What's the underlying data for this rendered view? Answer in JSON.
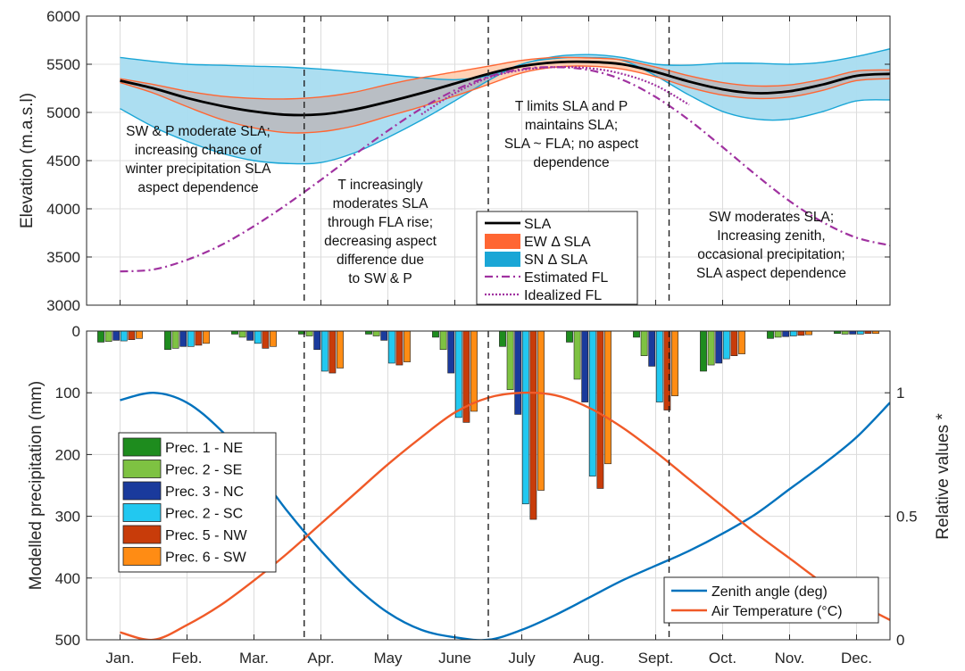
{
  "chart_data": [
    {
      "type": "line",
      "panel": "top",
      "ylabel": "Elevation (m.a.s.l)",
      "ylim": [
        3000,
        6000
      ],
      "yticks": [
        3000,
        3500,
        4000,
        4500,
        5000,
        5500,
        6000
      ],
      "x": [
        0,
        0.5,
        1,
        1.5,
        2,
        2.5,
        3,
        3.5,
        4,
        4.5,
        5,
        5.5,
        6,
        6.5,
        7,
        7.5,
        8,
        8.5,
        9,
        9.5,
        10,
        10.5,
        11,
        11.5
      ],
      "series": [
        {
          "name": "SLA",
          "key": "sla",
          "values": [
            5330,
            5250,
            5150,
            5070,
            5010,
            4975,
            4980,
            5030,
            5110,
            5200,
            5300,
            5400,
            5480,
            5520,
            5525,
            5500,
            5420,
            5320,
            5240,
            5200,
            5220,
            5290,
            5380,
            5400
          ]
        },
        {
          "name": "EW Δ SLA",
          "key": "ew",
          "upper": [
            5350,
            5290,
            5220,
            5170,
            5145,
            5140,
            5160,
            5210,
            5290,
            5360,
            5420,
            5480,
            5540,
            5570,
            5565,
            5545,
            5470,
            5380,
            5310,
            5275,
            5285,
            5345,
            5430,
            5440
          ],
          "lower": [
            5310,
            5200,
            5060,
            4930,
            4840,
            4790,
            4800,
            4860,
            4960,
            5060,
            5170,
            5290,
            5410,
            5470,
            5480,
            5450,
            5370,
            5260,
            5180,
            5145,
            5160,
            5230,
            5330,
            5350
          ]
        },
        {
          "name": "SN Δ SLA",
          "key": "sn",
          "upper": [
            5570,
            5530,
            5500,
            5490,
            5480,
            5470,
            5450,
            5420,
            5390,
            5360,
            5340,
            5380,
            5500,
            5580,
            5600,
            5570,
            5500,
            5490,
            5510,
            5510,
            5500,
            5520,
            5580,
            5660
          ],
          "lower": [
            5040,
            4850,
            4700,
            4580,
            4500,
            4470,
            4480,
            4580,
            4740,
            4920,
            5120,
            5330,
            5500,
            5560,
            5570,
            5540,
            5380,
            5180,
            5010,
            4930,
            4930,
            5010,
            5120,
            5130
          ]
        },
        {
          "name": "Estimated FL",
          "key": "efl",
          "values": [
            3350,
            3370,
            3470,
            3620,
            3820,
            4050,
            4300,
            4560,
            4810,
            5040,
            5230,
            5370,
            5450,
            5470,
            5440,
            5340,
            5160,
            4920,
            4640,
            4350,
            4080,
            3860,
            3700,
            3620
          ]
        },
        {
          "name": "Idealized FL",
          "key": "ifl",
          "values": [
            null,
            null,
            null,
            null,
            null,
            null,
            null,
            null,
            null,
            4980,
            5200,
            5360,
            5440,
            5470,
            5460,
            5400,
            5280,
            5080,
            null,
            null,
            null,
            null,
            null,
            null
          ]
        }
      ],
      "legend_position": "center",
      "annotations": [
        {
          "lines": [
            "SW & P moderate SLA;",
            "increasing chance of",
            "winter precipitation SLA",
            "aspect dependence"
          ]
        },
        {
          "lines": [
            "T increasingly",
            "moderates SLA",
            "through FLA rise;",
            "decreasing aspect",
            "difference due",
            "to SW & P"
          ]
        },
        {
          "lines": [
            "T limits SLA and P",
            "maintains SLA;",
            "SLA ~ FLA; no aspect",
            "dependence"
          ]
        },
        {
          "lines": [
            "SW moderates SLA;",
            "Increasing zenith,",
            "occasional precipitation;",
            "SLA aspect dependence"
          ]
        }
      ],
      "season_dividers": [
        2.75,
        5.5,
        8.2
      ]
    },
    {
      "type": "bar",
      "panel": "bottom",
      "ylabel": "Modelled precipitation (mm)",
      "y2label": "Relative values *",
      "ylim": [
        0,
        500
      ],
      "yticks": [
        0,
        100,
        200,
        300,
        400,
        500
      ],
      "y2ticks": [
        "0",
        "0.5",
        "1"
      ],
      "categories": [
        "Jan.",
        "Feb.",
        "Mar.",
        "Apr.",
        "May",
        "June",
        "July",
        "Aug.",
        "Sept.",
        "Oct.",
        "Nov.",
        "Dec."
      ],
      "series": [
        {
          "name": "Prec. 1 - NE",
          "key": "p1",
          "values": [
            18,
            30,
            5,
            5,
            5,
            10,
            25,
            18,
            10,
            65,
            12,
            4
          ]
        },
        {
          "name": "Prec. 2 - SE",
          "key": "p2",
          "values": [
            17,
            28,
            10,
            8,
            8,
            30,
            95,
            78,
            40,
            55,
            10,
            5
          ]
        },
        {
          "name": "Prec. 3 - NC",
          "key": "p3",
          "values": [
            15,
            25,
            15,
            30,
            15,
            68,
            135,
            115,
            57,
            52,
            9,
            5
          ]
        },
        {
          "name": "Prec. 2 - SC",
          "key": "p4",
          "values": [
            16,
            25,
            20,
            65,
            52,
            140,
            280,
            235,
            115,
            45,
            8,
            5
          ]
        },
        {
          "name": "Prec. 5 - NW",
          "key": "p5",
          "values": [
            14,
            23,
            28,
            68,
            55,
            148,
            305,
            255,
            128,
            40,
            7,
            4
          ]
        },
        {
          "name": "Prec. 6 - SW",
          "key": "p6",
          "values": [
            12,
            20,
            25,
            60,
            50,
            130,
            258,
            215,
            105,
            37,
            6,
            4
          ]
        }
      ],
      "lines": [
        {
          "name": "Zenith angle (deg)",
          "key": "zen",
          "x": [
            0,
            0.5,
            1,
            1.5,
            2,
            2.5,
            3,
            3.5,
            4,
            4.5,
            5,
            5.5,
            6,
            6.5,
            7,
            7.5,
            8,
            8.5,
            9,
            9.5,
            10,
            10.5,
            11,
            11.5
          ],
          "values": [
            0.97,
            1.0,
            0.96,
            0.85,
            0.7,
            0.52,
            0.36,
            0.22,
            0.11,
            0.04,
            0.01,
            0.0,
            0.04,
            0.1,
            0.17,
            0.24,
            0.3,
            0.36,
            0.43,
            0.51,
            0.61,
            0.71,
            0.82,
            0.96
          ]
        },
        {
          "name": "Air Temperature (°C)",
          "key": "tmp",
          "x": [
            0,
            0.5,
            1,
            1.5,
            2,
            2.5,
            3,
            3.5,
            4,
            4.5,
            5,
            5.5,
            6,
            6.5,
            7,
            7.5,
            8,
            8.5,
            9,
            9.5,
            10,
            10.5,
            11,
            11.5
          ],
          "values": [
            0.03,
            0.0,
            0.06,
            0.14,
            0.24,
            0.35,
            0.47,
            0.59,
            0.71,
            0.82,
            0.92,
            0.98,
            1.0,
            0.99,
            0.94,
            0.86,
            0.76,
            0.65,
            0.54,
            0.43,
            0.33,
            0.23,
            0.15,
            0.08
          ]
        }
      ],
      "legend_positions": [
        "left",
        "bottom-right"
      ],
      "season_dividers": [
        2.75,
        5.5,
        8.2
      ]
    }
  ],
  "colors": {
    "sla": "#000000",
    "ew_edge": "#ff6633",
    "ew_fill": "#ffc9a8",
    "sn_edge": "#1aa6d6",
    "sn_fill": "#a8dcf0",
    "overlap_fill": "#b9bec4",
    "efl": "#a032a0",
    "ifl": "#a032a0",
    "zen": "#0072bd",
    "tmp": "#f05a28",
    "p1": "#1e8c1e",
    "p2": "#7ec242",
    "p3": "#1a3a9c",
    "p4": "#22c8f0",
    "p5": "#c83c0a",
    "p6": "#ff8c14"
  }
}
